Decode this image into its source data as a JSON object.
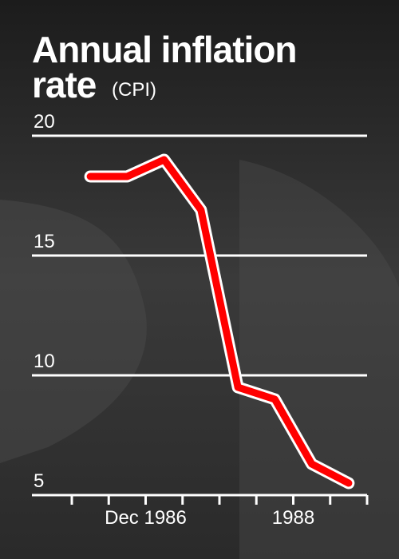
{
  "chart_data": {
    "type": "line",
    "title": "Annual inflation rate",
    "title_line2": "rate",
    "subtitle": "(CPI)",
    "categories": [
      null,
      null,
      null,
      null,
      null,
      null,
      null,
      null
    ],
    "series": [
      {
        "name": "CPI",
        "color": "#ff0000",
        "values": [
          18.3,
          18.3,
          19.0,
          16.9,
          9.5,
          9.0,
          6.3,
          5.5
        ]
      }
    ],
    "x_labels": [
      {
        "value": 2,
        "label": "Dec 1986"
      },
      {
        "value": 6,
        "label": "1988"
      }
    ],
    "ylim": [
      5,
      20
    ],
    "yticks": [
      5,
      10,
      15,
      20
    ],
    "grid": true
  }
}
